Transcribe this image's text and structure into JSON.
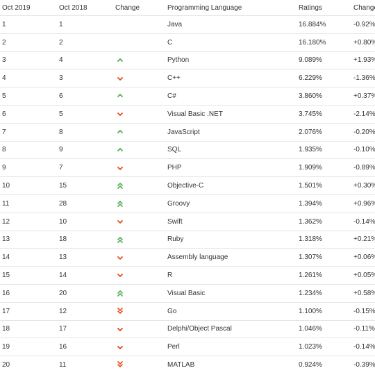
{
  "header": {
    "col1": "Oct 2019",
    "col2": "Oct 2018",
    "col3": "Change",
    "col4": "Programming Language",
    "col5": "Ratings",
    "col6": "Change"
  },
  "colors": {
    "up": "#4caf50",
    "down": "#e64a19",
    "text": "#333333",
    "grid": "#e6e6e6"
  },
  "rows": [
    {
      "rank2019": "1",
      "rank2018": "1",
      "trend": "none",
      "language": "Java",
      "rating": "16.884%",
      "change": "-0.92%"
    },
    {
      "rank2019": "2",
      "rank2018": "2",
      "trend": "none",
      "language": "C",
      "rating": "16.180%",
      "change": "+0.80%"
    },
    {
      "rank2019": "3",
      "rank2018": "4",
      "trend": "up",
      "language": "Python",
      "rating": "9.089%",
      "change": "+1.93%"
    },
    {
      "rank2019": "4",
      "rank2018": "3",
      "trend": "down",
      "language": "C++",
      "rating": "6.229%",
      "change": "-1.36%"
    },
    {
      "rank2019": "5",
      "rank2018": "6",
      "trend": "up",
      "language": "C#",
      "rating": "3.860%",
      "change": "+0.37%"
    },
    {
      "rank2019": "6",
      "rank2018": "5",
      "trend": "down",
      "language": "Visual Basic .NET",
      "rating": "3.745%",
      "change": "-2.14%"
    },
    {
      "rank2019": "7",
      "rank2018": "8",
      "trend": "up",
      "language": "JavaScript",
      "rating": "2.076%",
      "change": "-0.20%"
    },
    {
      "rank2019": "8",
      "rank2018": "9",
      "trend": "up",
      "language": "SQL",
      "rating": "1.935%",
      "change": "-0.10%"
    },
    {
      "rank2019": "9",
      "rank2018": "7",
      "trend": "down",
      "language": "PHP",
      "rating": "1.909%",
      "change": "-0.89%"
    },
    {
      "rank2019": "10",
      "rank2018": "15",
      "trend": "up2",
      "language": "Objective-C",
      "rating": "1.501%",
      "change": "+0.30%"
    },
    {
      "rank2019": "11",
      "rank2018": "28",
      "trend": "up2",
      "language": "Groovy",
      "rating": "1.394%",
      "change": "+0.96%"
    },
    {
      "rank2019": "12",
      "rank2018": "10",
      "trend": "down",
      "language": "Swift",
      "rating": "1.362%",
      "change": "-0.14%"
    },
    {
      "rank2019": "13",
      "rank2018": "18",
      "trend": "up2",
      "language": "Ruby",
      "rating": "1.318%",
      "change": "+0.21%"
    },
    {
      "rank2019": "14",
      "rank2018": "13",
      "trend": "down",
      "language": "Assembly language",
      "rating": "1.307%",
      "change": "+0.06%"
    },
    {
      "rank2019": "15",
      "rank2018": "14",
      "trend": "down",
      "language": "R",
      "rating": "1.261%",
      "change": "+0.05%"
    },
    {
      "rank2019": "16",
      "rank2018": "20",
      "trend": "up2",
      "language": "Visual Basic",
      "rating": "1.234%",
      "change": "+0.58%"
    },
    {
      "rank2019": "17",
      "rank2018": "12",
      "trend": "down2",
      "language": "Go",
      "rating": "1.100%",
      "change": "-0.15%"
    },
    {
      "rank2019": "18",
      "rank2018": "17",
      "trend": "down",
      "language": "Delphi/Object Pascal",
      "rating": "1.046%",
      "change": "-0.11%"
    },
    {
      "rank2019": "19",
      "rank2018": "16",
      "trend": "down",
      "language": "Perl",
      "rating": "1.023%",
      "change": "-0.14%"
    },
    {
      "rank2019": "20",
      "rank2018": "11",
      "trend": "down2",
      "language": "MATLAB",
      "rating": "0.924%",
      "change": "-0.39%"
    }
  ]
}
